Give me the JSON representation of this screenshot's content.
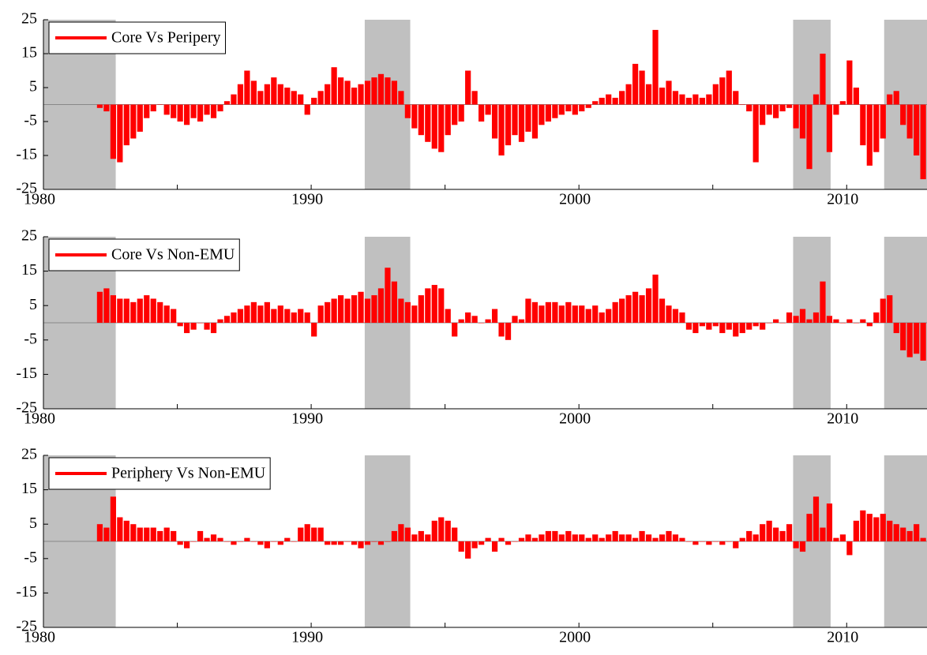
{
  "chart_data": [
    {
      "type": "bar",
      "xlim": [
        1980,
        2013
      ],
      "ylim": [
        -25,
        25
      ],
      "yticks": [
        25,
        15,
        5,
        -5,
        -15,
        -25
      ],
      "xticks": [
        1980,
        1990,
        2000,
        2010
      ],
      "xminor_ticks": [
        1985,
        1995,
        2005
      ],
      "shaded_regions": [
        [
          1980,
          1982.7
        ],
        [
          1992,
          1993.7
        ],
        [
          2008,
          2009.4
        ],
        [
          2011.4,
          2013
        ]
      ],
      "shade_color": "#c0c0c0",
      "series": [
        {
          "name": "Core Vs Peripery",
          "color": "#ff0000",
          "x": [
            1982,
            1982.25,
            1982.5,
            1982.75,
            1983,
            1983.25,
            1983.5,
            1983.75,
            1984,
            1984.25,
            1984.5,
            1984.75,
            1985,
            1985.25,
            1985.5,
            1985.75,
            1986,
            1986.25,
            1986.5,
            1986.75,
            1987,
            1987.25,
            1987.5,
            1987.75,
            1988,
            1988.25,
            1988.5,
            1988.75,
            1989,
            1989.25,
            1989.5,
            1989.75,
            1990,
            1990.25,
            1990.5,
            1990.75,
            1991,
            1991.25,
            1991.5,
            1991.75,
            1992,
            1992.25,
            1992.5,
            1992.75,
            1993,
            1993.25,
            1993.5,
            1993.75,
            1994,
            1994.25,
            1994.5,
            1994.75,
            1995,
            1995.25,
            1995.5,
            1995.75,
            1996,
            1996.25,
            1996.5,
            1996.75,
            1997,
            1997.25,
            1997.5,
            1997.75,
            1998,
            1998.25,
            1998.5,
            1998.75,
            1999,
            1999.25,
            1999.5,
            1999.75,
            2000,
            2000.25,
            2000.5,
            2000.75,
            2001,
            2001.25,
            2001.5,
            2001.75,
            2002,
            2002.25,
            2002.5,
            2002.75,
            2003,
            2003.25,
            2003.5,
            2003.75,
            2004,
            2004.25,
            2004.5,
            2004.75,
            2005,
            2005.25,
            2005.5,
            2005.75,
            2006,
            2006.25,
            2006.5,
            2006.75,
            2007,
            2007.25,
            2007.5,
            2007.75,
            2008,
            2008.25,
            2008.5,
            2008.75,
            2009,
            2009.25,
            2009.5,
            2009.75,
            2010,
            2010.25,
            2010.5,
            2010.75,
            2011,
            2011.25,
            2011.5,
            2011.75,
            2012,
            2012.25,
            2012.5,
            2012.75
          ],
          "values": [
            -1,
            -2,
            -16,
            -17,
            -12,
            -10,
            -8,
            -4,
            -2,
            0,
            -3,
            -4,
            -5,
            -6,
            -4,
            -5,
            -3,
            -4,
            -2,
            1,
            3,
            6,
            10,
            7,
            4,
            6,
            8,
            6,
            5,
            4,
            3,
            -3,
            2,
            4,
            6,
            11,
            8,
            7,
            5,
            6,
            7,
            8,
            9,
            8,
            7,
            4,
            -4,
            -7,
            -9,
            -11,
            -13,
            -14,
            -9,
            -6,
            -5,
            10,
            4,
            -5,
            -3,
            -10,
            -15,
            -12,
            -9,
            -11,
            -8,
            -10,
            -6,
            -5,
            -4,
            -3,
            -2,
            -3,
            -2,
            -1,
            1,
            2,
            3,
            2,
            4,
            6,
            12,
            10,
            6,
            22,
            5,
            7,
            4,
            3,
            2,
            3,
            2,
            3,
            6,
            8,
            10,
            4,
            0,
            -2,
            -17,
            -6,
            -3,
            -4,
            -2,
            -1,
            -7,
            -10,
            -19,
            3,
            15,
            -14,
            -3,
            1,
            13,
            5,
            -12,
            -18,
            -14,
            -10,
            3,
            4,
            -6,
            -10,
            -15,
            -22
          ]
        }
      ]
    },
    {
      "type": "bar",
      "xlim": [
        1980,
        2013
      ],
      "ylim": [
        -25,
        25
      ],
      "yticks": [
        25,
        15,
        5,
        -5,
        -15,
        -25
      ],
      "xticks": [
        1980,
        1990,
        2000,
        2010
      ],
      "xminor_ticks": [
        1985,
        1995,
        2005
      ],
      "shaded_regions": [
        [
          1980,
          1982.7
        ],
        [
          1992,
          1993.7
        ],
        [
          2008,
          2009.4
        ],
        [
          2011.4,
          2013
        ]
      ],
      "shade_color": "#c0c0c0",
      "series": [
        {
          "name": "Core Vs Non-EMU",
          "color": "#ff0000",
          "x": [
            1982,
            1982.25,
            1982.5,
            1982.75,
            1983,
            1983.25,
            1983.5,
            1983.75,
            1984,
            1984.25,
            1984.5,
            1984.75,
            1985,
            1985.25,
            1985.5,
            1985.75,
            1986,
            1986.25,
            1986.5,
            1986.75,
            1987,
            1987.25,
            1987.5,
            1987.75,
            1988,
            1988.25,
            1988.5,
            1988.75,
            1989,
            1989.25,
            1989.5,
            1989.75,
            1990,
            1990.25,
            1990.5,
            1990.75,
            1991,
            1991.25,
            1991.5,
            1991.75,
            1992,
            1992.25,
            1992.5,
            1992.75,
            1993,
            1993.25,
            1993.5,
            1993.75,
            1994,
            1994.25,
            1994.5,
            1994.75,
            1995,
            1995.25,
            1995.5,
            1995.75,
            1996,
            1996.25,
            1996.5,
            1996.75,
            1997,
            1997.25,
            1997.5,
            1997.75,
            1998,
            1998.25,
            1998.5,
            1998.75,
            1999,
            1999.25,
            1999.5,
            1999.75,
            2000,
            2000.25,
            2000.5,
            2000.75,
            2001,
            2001.25,
            2001.5,
            2001.75,
            2002,
            2002.25,
            2002.5,
            2002.75,
            2003,
            2003.25,
            2003.5,
            2003.75,
            2004,
            2004.25,
            2004.5,
            2004.75,
            2005,
            2005.25,
            2005.5,
            2005.75,
            2006,
            2006.25,
            2006.5,
            2006.75,
            2007,
            2007.25,
            2007.5,
            2007.75,
            2008,
            2008.25,
            2008.5,
            2008.75,
            2009,
            2009.25,
            2009.5,
            2009.75,
            2010,
            2010.25,
            2010.5,
            2010.75,
            2011,
            2011.25,
            2011.5,
            2011.75,
            2012,
            2012.25,
            2012.5,
            2012.75
          ],
          "values": [
            9,
            10,
            8,
            7,
            7,
            6,
            7,
            8,
            7,
            6,
            5,
            4,
            -1,
            -3,
            -2,
            0,
            -2,
            -3,
            1,
            2,
            3,
            4,
            5,
            6,
            5,
            6,
            4,
            5,
            4,
            3,
            4,
            3,
            -4,
            5,
            6,
            7,
            8,
            7,
            8,
            9,
            7,
            8,
            10,
            16,
            12,
            7,
            6,
            5,
            8,
            10,
            11,
            10,
            4,
            -4,
            1,
            3,
            2,
            0,
            1,
            4,
            -4,
            -5,
            2,
            1,
            7,
            6,
            5,
            6,
            6,
            5,
            6,
            5,
            5,
            4,
            5,
            3,
            4,
            6,
            7,
            8,
            9,
            8,
            10,
            14,
            7,
            5,
            4,
            3,
            -2,
            -3,
            -1,
            -2,
            -1,
            -3,
            -2,
            -4,
            -3,
            -2,
            -1,
            -2,
            0,
            1,
            0,
            3,
            2,
            4,
            1,
            3,
            12,
            2,
            1,
            0,
            1,
            0,
            1,
            -1,
            3,
            7,
            8,
            -3,
            -8,
            -10,
            -9,
            -11
          ]
        }
      ]
    },
    {
      "type": "bar",
      "xlim": [
        1980,
        2013
      ],
      "ylim": [
        -25,
        25
      ],
      "yticks": [
        25,
        15,
        5,
        -5,
        -15,
        -25
      ],
      "xticks": [
        1980,
        1990,
        2000,
        2010
      ],
      "xminor_ticks": [
        1985,
        1995,
        2005
      ],
      "shaded_regions": [
        [
          1980,
          1982.7
        ],
        [
          1992,
          1993.7
        ],
        [
          2008,
          2009.4
        ],
        [
          2011.4,
          2013
        ]
      ],
      "shade_color": "#c0c0c0",
      "series": [
        {
          "name": "Periphery Vs Non-EMU",
          "color": "#ff0000",
          "x": [
            1982,
            1982.25,
            1982.5,
            1982.75,
            1983,
            1983.25,
            1983.5,
            1983.75,
            1984,
            1984.25,
            1984.5,
            1984.75,
            1985,
            1985.25,
            1985.5,
            1985.75,
            1986,
            1986.25,
            1986.5,
            1986.75,
            1987,
            1987.25,
            1987.5,
            1987.75,
            1988,
            1988.25,
            1988.5,
            1988.75,
            1989,
            1989.25,
            1989.5,
            1989.75,
            1990,
            1990.25,
            1990.5,
            1990.75,
            1991,
            1991.25,
            1991.5,
            1991.75,
            1992,
            1992.25,
            1992.5,
            1992.75,
            1993,
            1993.25,
            1993.5,
            1993.75,
            1994,
            1994.25,
            1994.5,
            1994.75,
            1995,
            1995.25,
            1995.5,
            1995.75,
            1996,
            1996.25,
            1996.5,
            1996.75,
            1997,
            1997.25,
            1997.5,
            1997.75,
            1998,
            1998.25,
            1998.5,
            1998.75,
            1999,
            1999.25,
            1999.5,
            1999.75,
            2000,
            2000.25,
            2000.5,
            2000.75,
            2001,
            2001.25,
            2001.5,
            2001.75,
            2002,
            2002.25,
            2002.5,
            2002.75,
            2003,
            2003.25,
            2003.5,
            2003.75,
            2004,
            2004.25,
            2004.5,
            2004.75,
            2005,
            2005.25,
            2005.5,
            2005.75,
            2006,
            2006.25,
            2006.5,
            2006.75,
            2007,
            2007.25,
            2007.5,
            2007.75,
            2008,
            2008.25,
            2008.5,
            2008.75,
            2009,
            2009.25,
            2009.5,
            2009.75,
            2010,
            2010.25,
            2010.5,
            2010.75,
            2011,
            2011.25,
            2011.5,
            2011.75,
            2012,
            2012.25,
            2012.5,
            2012.75
          ],
          "values": [
            5,
            4,
            13,
            7,
            6,
            5,
            4,
            4,
            4,
            3,
            4,
            3,
            -1,
            -2,
            0,
            3,
            1,
            2,
            1,
            0,
            -1,
            0,
            1,
            0,
            -1,
            -2,
            0,
            -1,
            1,
            0,
            4,
            5,
            4,
            4,
            -1,
            -1,
            -1,
            0,
            -1,
            -2,
            -1,
            0,
            -1,
            0,
            3,
            5,
            4,
            2,
            3,
            2,
            6,
            7,
            6,
            4,
            -3,
            -5,
            -2,
            -1,
            1,
            -3,
            1,
            -1,
            0,
            1,
            2,
            1,
            2,
            3,
            3,
            2,
            3,
            2,
            2,
            1,
            2,
            1,
            2,
            3,
            2,
            2,
            1,
            3,
            2,
            1,
            2,
            3,
            2,
            1,
            0,
            -1,
            0,
            -1,
            0,
            -1,
            0,
            -2,
            1,
            3,
            2,
            5,
            6,
            4,
            3,
            5,
            -2,
            -3,
            8,
            13,
            4,
            11,
            1,
            2,
            -4,
            6,
            9,
            8,
            7,
            8,
            6,
            5,
            4,
            3,
            5,
            1
          ]
        }
      ]
    }
  ]
}
